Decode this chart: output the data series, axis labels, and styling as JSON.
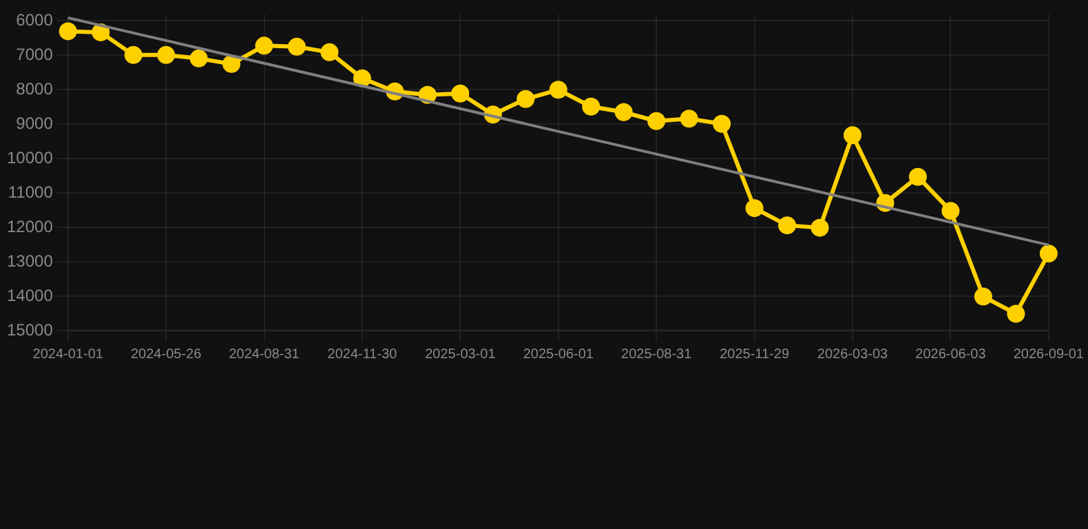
{
  "chart_data": {
    "type": "line",
    "categories": [
      "2024-01-01",
      null,
      null,
      "2024-05-26",
      null,
      null,
      "2024-08-31",
      null,
      null,
      "2024-11-30",
      null,
      null,
      "2025-03-01",
      null,
      null,
      "2025-06-01",
      null,
      null,
      "2025-08-31",
      null,
      null,
      "2025-11-29",
      null,
      null,
      "2026-03-03",
      null,
      null,
      "2026-06-03",
      null,
      null,
      "2026-09-01"
    ],
    "ylim": [
      15000,
      5800
    ],
    "yticks": [
      6000,
      7000,
      8000,
      9000,
      10000,
      11000,
      12000,
      13000,
      14000,
      15000
    ],
    "grid": true,
    "series": [
      {
        "color": "#ffd000",
        "marker": "circle",
        "values": [
          6300,
          6330,
          6990,
          6990,
          7090,
          7250,
          6720,
          6750,
          6910,
          7670,
          8050,
          8150,
          8110,
          8720,
          8270,
          8000,
          8490,
          8650,
          8910,
          8840,
          8990,
          11440,
          11940,
          12010,
          9320,
          11290,
          10530,
          11520,
          14010,
          14510,
          12760
        ]
      },
      {
        "type": "line",
        "color": "#808080",
        "marker": "none",
        "values": [
          5910,
          null,
          null,
          null,
          null,
          null,
          null,
          null,
          null,
          null,
          null,
          null,
          null,
          null,
          null,
          null,
          null,
          null,
          null,
          null,
          null,
          null,
          null,
          null,
          null,
          null,
          null,
          null,
          null,
          null,
          12510
        ]
      }
    ]
  }
}
